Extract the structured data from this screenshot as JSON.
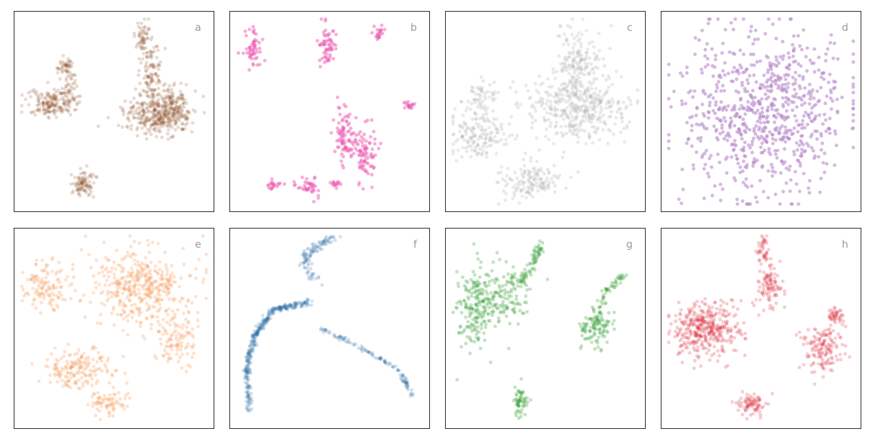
{
  "chart_data": [
    {
      "type": "scatter",
      "panel": "a",
      "color": "#8c4a24",
      "point_opacity": 0.2,
      "x": [
        0,
        1
      ],
      "y": [
        0,
        1
      ],
      "clusters": [
        {
          "cx": 0.73,
          "cy": 0.52,
          "sx": 0.09,
          "sy": 0.05,
          "n": 320
        },
        {
          "cx": 0.81,
          "cy": 0.45,
          "sx": 0.05,
          "sy": 0.06,
          "n": 120
        },
        {
          "cx": 0.7,
          "cy": 0.3,
          "sx": 0.03,
          "sy": 0.08,
          "n": 110
        },
        {
          "cx": 0.65,
          "cy": 0.1,
          "sx": 0.02,
          "sy": 0.04,
          "n": 50
        },
        {
          "cx": 0.16,
          "cy": 0.46,
          "sx": 0.06,
          "sy": 0.04,
          "n": 150
        },
        {
          "cx": 0.25,
          "cy": 0.4,
          "sx": 0.03,
          "sy": 0.05,
          "n": 60
        },
        {
          "cx": 0.24,
          "cy": 0.26,
          "sx": 0.02,
          "sy": 0.025,
          "n": 45
        },
        {
          "cx": 0.34,
          "cy": 0.88,
          "sx": 0.03,
          "sy": 0.035,
          "n": 90
        }
      ]
    },
    {
      "type": "scatter",
      "panel": "b",
      "color": "#ee5fb4",
      "point_opacity": 0.5,
      "x": [
        0,
        1
      ],
      "y": [
        0,
        1
      ],
      "clusters": [
        {
          "cx": 0.09,
          "cy": 0.17,
          "sx": 0.025,
          "sy": 0.05,
          "n": 55
        },
        {
          "cx": 0.49,
          "cy": 0.15,
          "sx": 0.025,
          "sy": 0.05,
          "n": 60
        },
        {
          "cx": 0.77,
          "cy": 0.08,
          "sx": 0.012,
          "sy": 0.018,
          "n": 22
        },
        {
          "cx": 0.92,
          "cy": 0.47,
          "sx": 0.012,
          "sy": 0.01,
          "n": 18
        },
        {
          "cx": 0.58,
          "cy": 0.63,
          "sx": 0.03,
          "sy": 0.07,
          "n": 90
        },
        {
          "cx": 0.69,
          "cy": 0.72,
          "sx": 0.03,
          "sy": 0.07,
          "n": 80
        },
        {
          "cx": 0.39,
          "cy": 0.89,
          "sx": 0.03,
          "sy": 0.03,
          "n": 40
        },
        {
          "cx": 0.2,
          "cy": 0.89,
          "sx": 0.02,
          "sy": 0.015,
          "n": 20
        },
        {
          "cx": 0.53,
          "cy": 0.88,
          "sx": 0.02,
          "sy": 0.01,
          "n": 15
        }
      ]
    },
    {
      "type": "scatter",
      "panel": "c",
      "color": "#b5b5b5",
      "point_opacity": 0.28,
      "x": [
        0,
        1
      ],
      "y": [
        0,
        1
      ],
      "clusters": [
        {
          "cx": 0.66,
          "cy": 0.48,
          "sx": 0.13,
          "sy": 0.09,
          "n": 400
        },
        {
          "cx": 0.68,
          "cy": 0.24,
          "sx": 0.06,
          "sy": 0.09,
          "n": 150
        },
        {
          "cx": 0.14,
          "cy": 0.63,
          "sx": 0.08,
          "sy": 0.06,
          "n": 150
        },
        {
          "cx": 0.15,
          "cy": 0.43,
          "sx": 0.04,
          "sy": 0.05,
          "n": 60
        },
        {
          "cx": 0.41,
          "cy": 0.87,
          "sx": 0.08,
          "sy": 0.05,
          "n": 140
        }
      ]
    },
    {
      "type": "scatter",
      "panel": "d",
      "color": "#b98ccc",
      "point_opacity": 0.6,
      "x": [
        0,
        1
      ],
      "y": [
        0,
        1
      ],
      "clusters": [
        {
          "cx": 0.52,
          "cy": 0.5,
          "sx": 0.22,
          "sy": 0.22,
          "n": 750
        }
      ]
    },
    {
      "type": "scatter",
      "panel": "e",
      "color": "#f79a58",
      "point_opacity": 0.28,
      "x": [
        0,
        1
      ],
      "y": [
        0,
        1
      ],
      "clusters": [
        {
          "cx": 0.64,
          "cy": 0.28,
          "sx": 0.13,
          "sy": 0.1,
          "n": 420
        },
        {
          "cx": 0.83,
          "cy": 0.55,
          "sx": 0.05,
          "sy": 0.08,
          "n": 100
        },
        {
          "cx": 0.14,
          "cy": 0.27,
          "sx": 0.06,
          "sy": 0.06,
          "n": 120
        },
        {
          "cx": 0.32,
          "cy": 0.72,
          "sx": 0.1,
          "sy": 0.05,
          "n": 170
        },
        {
          "cx": 0.47,
          "cy": 0.9,
          "sx": 0.05,
          "sy": 0.035,
          "n": 70
        }
      ]
    },
    {
      "type": "scatter",
      "panel": "f",
      "color": "#2f6ea6",
      "point_opacity": 0.2,
      "x": [
        0,
        1
      ],
      "y": [
        0,
        1
      ],
      "paths": [
        {
          "pts": [
            [
              0.4,
              0.36
            ],
            [
              0.2,
              0.4
            ],
            [
              0.1,
              0.54
            ],
            [
              0.06,
              0.7
            ],
            [
              0.07,
              0.94
            ]
          ],
          "n": 360,
          "sd": 0.008
        },
        {
          "pts": [
            [
              0.43,
              0.26
            ],
            [
              0.36,
              0.14
            ],
            [
              0.43,
              0.06
            ],
            [
              0.53,
              0.02
            ]
          ],
          "n": 110,
          "sd": 0.014
        },
        {
          "pts": [
            [
              0.45,
              0.5
            ],
            [
              0.64,
              0.59
            ],
            [
              0.87,
              0.72
            ],
            [
              0.94,
              0.86
            ]
          ],
          "n": 120,
          "sd": 0.006
        }
      ]
    },
    {
      "type": "scatter",
      "panel": "g",
      "color": "#3aa23a",
      "point_opacity": 0.3,
      "x": [
        0,
        1
      ],
      "y": [
        0,
        1
      ],
      "clusters": [
        {
          "cx": 0.13,
          "cy": 0.38,
          "sx": 0.05,
          "sy": 0.11,
          "n": 200
        },
        {
          "cx": 0.28,
          "cy": 0.32,
          "sx": 0.07,
          "sy": 0.08,
          "n": 120
        },
        {
          "cx": 0.77,
          "cy": 0.5,
          "sx": 0.04,
          "sy": 0.05,
          "n": 110
        },
        {
          "cx": 0.37,
          "cy": 0.89,
          "sx": 0.02,
          "sy": 0.04,
          "n": 60
        }
      ],
      "paths": [
        {
          "pts": [
            [
              0.36,
              0.28
            ],
            [
              0.44,
              0.15
            ],
            [
              0.48,
              0.05
            ]
          ],
          "n": 70,
          "sd": 0.012
        },
        {
          "pts": [
            [
              0.76,
              0.46
            ],
            [
              0.82,
              0.3
            ],
            [
              0.92,
              0.22
            ]
          ],
          "n": 55,
          "sd": 0.01
        }
      ]
    },
    {
      "type": "scatter",
      "panel": "h",
      "color": "#d91a2c",
      "point_opacity": 0.22,
      "x": [
        0,
        1
      ],
      "y": [
        0,
        1
      ],
      "clusters": [
        {
          "cx": 0.21,
          "cy": 0.51,
          "sx": 0.09,
          "sy": 0.07,
          "n": 380
        },
        {
          "cx": 0.82,
          "cy": 0.6,
          "sx": 0.05,
          "sy": 0.07,
          "n": 150
        },
        {
          "cx": 0.55,
          "cy": 0.26,
          "sx": 0.03,
          "sy": 0.06,
          "n": 100
        },
        {
          "cx": 0.51,
          "cy": 0.08,
          "sx": 0.015,
          "sy": 0.04,
          "n": 40
        },
        {
          "cx": 0.45,
          "cy": 0.9,
          "sx": 0.04,
          "sy": 0.03,
          "n": 80
        },
        {
          "cx": 0.89,
          "cy": 0.43,
          "sx": 0.02,
          "sy": 0.02,
          "n": 40
        }
      ]
    }
  ],
  "panels": [
    {
      "label": "a"
    },
    {
      "label": "b"
    },
    {
      "label": "c"
    },
    {
      "label": "d"
    },
    {
      "label": "e"
    },
    {
      "label": "f"
    },
    {
      "label": "g"
    },
    {
      "label": "h"
    }
  ]
}
